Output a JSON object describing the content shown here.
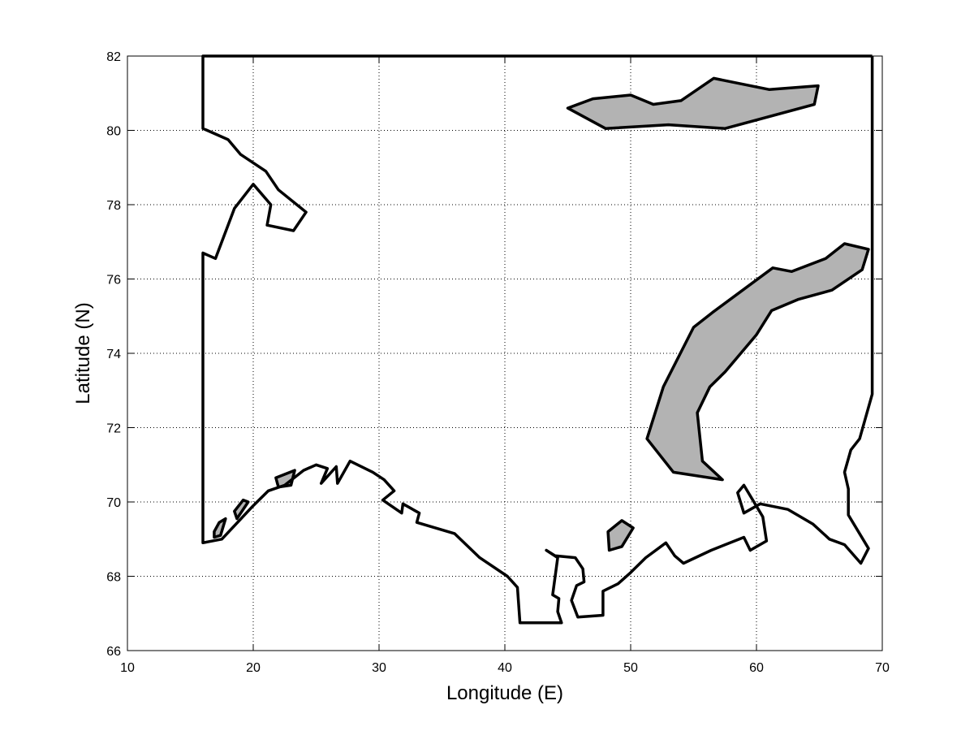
{
  "chart_data": {
    "type": "map",
    "xlabel": "Longitude (E)",
    "ylabel": "Latitude (N)",
    "xlim": [
      10,
      70
    ],
    "ylim": [
      66,
      82
    ],
    "xticks": [
      10,
      20,
      30,
      40,
      50,
      60,
      70
    ],
    "yticks": [
      66,
      68,
      70,
      72,
      74,
      76,
      78,
      80,
      82
    ],
    "grid": true,
    "grid_style": "dotted",
    "colors": {
      "line": "#000000",
      "island_fill": "#b3b3b3"
    },
    "boundary": [
      [
        69.2,
        82.0
      ],
      [
        16.0,
        82.0
      ],
      [
        16.0,
        80.05
      ],
      [
        18.0,
        79.75
      ],
      [
        19.0,
        79.35
      ],
      [
        21.0,
        78.9
      ],
      [
        22.0,
        78.4
      ],
      [
        24.2,
        77.8
      ],
      [
        23.2,
        77.3
      ],
      [
        21.1,
        77.45
      ],
      [
        21.4,
        78.0
      ],
      [
        20.0,
        78.55
      ],
      [
        18.5,
        77.9
      ],
      [
        17.0,
        76.55
      ],
      [
        16.0,
        76.7
      ],
      [
        16.0,
        68.9
      ],
      [
        17.5,
        69.0
      ],
      [
        20.0,
        69.9
      ],
      [
        21.2,
        70.3
      ],
      [
        22.5,
        70.45
      ],
      [
        24.0,
        70.85
      ],
      [
        25.0,
        71.0
      ],
      [
        25.9,
        70.9
      ],
      [
        25.4,
        70.5
      ],
      [
        26.6,
        70.95
      ],
      [
        26.7,
        70.5
      ],
      [
        27.7,
        71.1
      ],
      [
        29.5,
        70.8
      ],
      [
        30.4,
        70.6
      ],
      [
        31.2,
        70.3
      ],
      [
        30.3,
        70.05
      ],
      [
        31.8,
        69.7
      ],
      [
        31.9,
        69.95
      ],
      [
        33.2,
        69.7
      ],
      [
        33.0,
        69.45
      ],
      [
        36.0,
        69.15
      ],
      [
        38.0,
        68.5
      ],
      [
        40.2,
        68.0
      ],
      [
        41.0,
        67.7
      ],
      [
        41.2,
        66.75
      ],
      [
        44.5,
        66.75
      ],
      [
        44.2,
        67.05
      ],
      [
        44.3,
        67.4
      ],
      [
        43.8,
        67.5
      ],
      [
        44.2,
        68.5
      ],
      [
        43.3,
        68.7
      ],
      [
        44.0,
        68.55
      ],
      [
        45.6,
        68.5
      ],
      [
        46.2,
        68.2
      ],
      [
        46.3,
        67.85
      ],
      [
        45.7,
        67.75
      ],
      [
        45.3,
        67.35
      ],
      [
        45.8,
        66.9
      ],
      [
        47.8,
        66.95
      ],
      [
        47.8,
        67.6
      ],
      [
        49.0,
        67.8
      ],
      [
        50.0,
        68.1
      ],
      [
        51.2,
        68.5
      ],
      [
        52.8,
        68.9
      ],
      [
        53.5,
        68.55
      ],
      [
        54.2,
        68.35
      ],
      [
        56.4,
        68.7
      ],
      [
        59.0,
        69.05
      ],
      [
        59.5,
        68.7
      ],
      [
        60.8,
        68.95
      ],
      [
        60.5,
        69.6
      ],
      [
        59.0,
        70.45
      ],
      [
        58.5,
        70.25
      ],
      [
        59.0,
        69.7
      ],
      [
        60.3,
        69.95
      ],
      [
        62.5,
        69.8
      ],
      [
        64.5,
        69.4
      ],
      [
        65.8,
        69.0
      ],
      [
        67.0,
        68.85
      ],
      [
        68.3,
        68.35
      ],
      [
        68.9,
        68.75
      ],
      [
        67.3,
        69.65
      ],
      [
        67.3,
        70.35
      ],
      [
        67.0,
        70.8
      ],
      [
        67.5,
        71.4
      ],
      [
        68.2,
        71.7
      ],
      [
        69.2,
        72.9
      ],
      [
        69.2,
        82.0
      ]
    ],
    "islands": [
      [
        [
          45.0,
          80.6
        ],
        [
          47.0,
          80.85
        ],
        [
          50.0,
          80.95
        ],
        [
          51.8,
          80.7
        ],
        [
          54.0,
          80.8
        ],
        [
          56.6,
          81.4
        ],
        [
          61.0,
          81.1
        ],
        [
          64.9,
          81.2
        ],
        [
          64.6,
          80.7
        ],
        [
          57.5,
          80.05
        ],
        [
          53.0,
          80.15
        ],
        [
          48.0,
          80.05
        ]
      ],
      [
        [
          51.3,
          71.7
        ],
        [
          52.6,
          73.1
        ],
        [
          55.0,
          74.7
        ],
        [
          56.5,
          75.1
        ],
        [
          58.5,
          75.6
        ],
        [
          61.3,
          76.3
        ],
        [
          62.8,
          76.2
        ],
        [
          65.5,
          76.55
        ],
        [
          67.0,
          76.95
        ],
        [
          68.9,
          76.8
        ],
        [
          68.4,
          76.25
        ],
        [
          66.0,
          75.7
        ],
        [
          63.3,
          75.45
        ],
        [
          61.2,
          75.15
        ],
        [
          60.0,
          74.5
        ],
        [
          57.5,
          73.5
        ],
        [
          56.3,
          73.1
        ],
        [
          55.3,
          72.4
        ],
        [
          55.7,
          71.1
        ],
        [
          57.3,
          70.6
        ],
        [
          53.4,
          70.8
        ]
      ],
      [
        [
          48.2,
          69.2
        ],
        [
          49.3,
          69.5
        ],
        [
          50.2,
          69.3
        ],
        [
          49.3,
          68.8
        ],
        [
          48.3,
          68.7
        ]
      ],
      [
        [
          16.9,
          69.2
        ],
        [
          17.3,
          69.45
        ],
        [
          17.8,
          69.55
        ],
        [
          17.4,
          69.1
        ],
        [
          16.9,
          69.05
        ]
      ],
      [
        [
          18.5,
          69.75
        ],
        [
          19.2,
          70.05
        ],
        [
          19.6,
          70.0
        ],
        [
          18.7,
          69.55
        ]
      ],
      [
        [
          21.8,
          70.65
        ],
        [
          23.3,
          70.85
        ],
        [
          23.0,
          70.45
        ],
        [
          22.0,
          70.4
        ]
      ]
    ]
  }
}
